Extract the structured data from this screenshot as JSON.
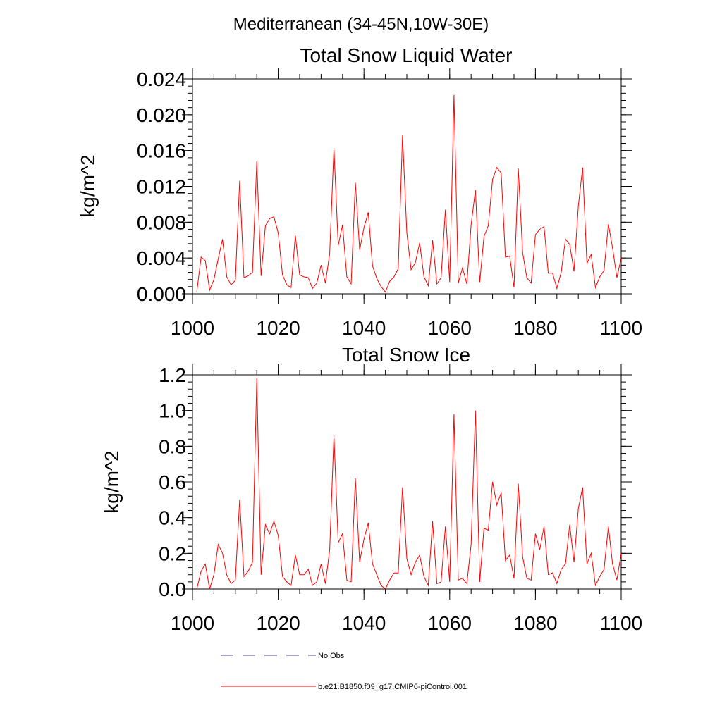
{
  "figure": {
    "title": "Mediterranean (34-45N,10W-30E)"
  },
  "legend": {
    "items": [
      {
        "label": "No Obs",
        "color": "#4a4a9c",
        "style": "dashed"
      },
      {
        "label": "b.e21.B1850.f09_g17.CMIP6-piControl.001",
        "color": "#ff0000",
        "style": "solid"
      }
    ]
  },
  "chart_data": [
    {
      "type": "line",
      "title": "Total Snow Liquid Water",
      "xlabel": "",
      "ylabel": "kg/m^2",
      "xlim": [
        1000,
        1100
      ],
      "ylim": [
        0,
        0.024
      ],
      "xticks": [
        "1000",
        "1020",
        "1040",
        "1060",
        "1080",
        "1100"
      ],
      "yticks": [
        "0.000",
        "0.004",
        "0.008",
        "0.012",
        "0.016",
        "0.020",
        "0.024"
      ],
      "grid": false,
      "series": [
        {
          "name": "b.e21.B1850.f09_g17.CMIP6-piControl.001",
          "color": "#ff0000",
          "x": [
            1001,
            1002,
            1003,
            1004,
            1005,
            1006,
            1007,
            1008,
            1009,
            1010,
            1011,
            1012,
            1013,
            1014,
            1015,
            1016,
            1017,
            1018,
            1019,
            1020,
            1021,
            1022,
            1023,
            1024,
            1025,
            1026,
            1027,
            1028,
            1029,
            1030,
            1031,
            1032,
            1033,
            1034,
            1035,
            1036,
            1037,
            1038,
            1039,
            1040,
            1041,
            1042,
            1043,
            1044,
            1045,
            1046,
            1047,
            1048,
            1049,
            1050,
            1051,
            1052,
            1053,
            1054,
            1055,
            1056,
            1057,
            1058,
            1059,
            1060,
            1061,
            1062,
            1063,
            1064,
            1065,
            1066,
            1067,
            1068,
            1069,
            1070,
            1071,
            1072,
            1073,
            1074,
            1075,
            1076,
            1077,
            1078,
            1079,
            1080,
            1081,
            1082,
            1083,
            1084,
            1085,
            1086,
            1087,
            1088,
            1089,
            1090,
            1091,
            1092,
            1093,
            1094,
            1095,
            1096,
            1097,
            1098,
            1099,
            1100
          ],
          "y": [
            0.0002,
            0.0041,
            0.0037,
            0.0004,
            0.0016,
            0.0039,
            0.0061,
            0.0019,
            0.001,
            0.0015,
            0.0126,
            0.0018,
            0.002,
            0.0024,
            0.0148,
            0.002,
            0.0076,
            0.0084,
            0.0086,
            0.0068,
            0.0021,
            0.001,
            0.0007,
            0.0065,
            0.0021,
            0.0019,
            0.0018,
            0.0006,
            0.0012,
            0.0032,
            0.0012,
            0.0045,
            0.0163,
            0.0054,
            0.0077,
            0.0019,
            0.0011,
            0.0124,
            0.0049,
            0.0074,
            0.0091,
            0.0031,
            0.0017,
            0.0008,
            0.0002,
            0.0014,
            0.0019,
            0.0028,
            0.0177,
            0.0068,
            0.0027,
            0.0035,
            0.0057,
            0.0019,
            0.0009,
            0.006,
            0.0011,
            0.0018,
            0.0094,
            0.0013,
            0.0222,
            0.0012,
            0.0029,
            0.0011,
            0.0077,
            0.0116,
            0.0013,
            0.0064,
            0.0076,
            0.0128,
            0.0141,
            0.0135,
            0.0041,
            0.0042,
            0.0007,
            0.014,
            0.0046,
            0.0018,
            0.0012,
            0.0066,
            0.0072,
            0.0075,
            0.0023,
            0.0023,
            0.0006,
            0.0024,
            0.0061,
            0.0055,
            0.0025,
            0.0098,
            0.0141,
            0.0034,
            0.0044,
            0.0007,
            0.0019,
            0.0026,
            0.0078,
            0.0051,
            0.0018,
            0.004
          ]
        }
      ]
    },
    {
      "type": "line",
      "title": "Total Snow Ice",
      "xlabel": "",
      "ylabel": "kg/m^2",
      "xlim": [
        1000,
        1100
      ],
      "ylim": [
        0,
        1.2
      ],
      "xticks": [
        "1000",
        "1020",
        "1040",
        "1060",
        "1080",
        "1100"
      ],
      "yticks": [
        "0.0",
        "0.2",
        "0.4",
        "0.6",
        "0.8",
        "1.0",
        "1.2"
      ],
      "grid": false,
      "series": [
        {
          "name": "b.e21.B1850.f09_g17.CMIP6-piControl.001",
          "color": "#ff0000",
          "x": [
            1001,
            1002,
            1003,
            1004,
            1005,
            1006,
            1007,
            1008,
            1009,
            1010,
            1011,
            1012,
            1013,
            1014,
            1015,
            1016,
            1017,
            1018,
            1019,
            1020,
            1021,
            1022,
            1023,
            1024,
            1025,
            1026,
            1027,
            1028,
            1029,
            1030,
            1031,
            1032,
            1033,
            1034,
            1035,
            1036,
            1037,
            1038,
            1039,
            1040,
            1041,
            1042,
            1043,
            1044,
            1045,
            1046,
            1047,
            1048,
            1049,
            1050,
            1051,
            1052,
            1053,
            1054,
            1055,
            1056,
            1057,
            1058,
            1059,
            1060,
            1061,
            1062,
            1063,
            1064,
            1065,
            1066,
            1067,
            1068,
            1069,
            1070,
            1071,
            1072,
            1073,
            1074,
            1075,
            1076,
            1077,
            1078,
            1079,
            1080,
            1081,
            1082,
            1083,
            1084,
            1085,
            1086,
            1087,
            1088,
            1089,
            1090,
            1091,
            1092,
            1093,
            1094,
            1095,
            1096,
            1097,
            1098,
            1099,
            1100
          ],
          "y": [
            0.0,
            0.1,
            0.14,
            0.0,
            0.08,
            0.25,
            0.2,
            0.08,
            0.03,
            0.05,
            0.5,
            0.07,
            0.1,
            0.15,
            1.18,
            0.08,
            0.36,
            0.31,
            0.38,
            0.3,
            0.07,
            0.04,
            0.02,
            0.19,
            0.08,
            0.08,
            0.11,
            0.02,
            0.04,
            0.14,
            0.03,
            0.22,
            0.86,
            0.26,
            0.31,
            0.05,
            0.04,
            0.62,
            0.15,
            0.28,
            0.37,
            0.14,
            0.08,
            0.02,
            0.0,
            0.05,
            0.09,
            0.09,
            0.57,
            0.17,
            0.08,
            0.15,
            0.19,
            0.07,
            0.02,
            0.38,
            0.03,
            0.04,
            0.35,
            0.04,
            0.98,
            0.05,
            0.06,
            0.03,
            0.25,
            1.0,
            0.04,
            0.34,
            0.33,
            0.6,
            0.47,
            0.54,
            0.16,
            0.19,
            0.06,
            0.59,
            0.18,
            0.06,
            0.05,
            0.31,
            0.22,
            0.35,
            0.08,
            0.09,
            0.03,
            0.11,
            0.14,
            0.36,
            0.15,
            0.45,
            0.57,
            0.14,
            0.2,
            0.02,
            0.07,
            0.11,
            0.35,
            0.14,
            0.05,
            0.2
          ]
        }
      ]
    }
  ]
}
